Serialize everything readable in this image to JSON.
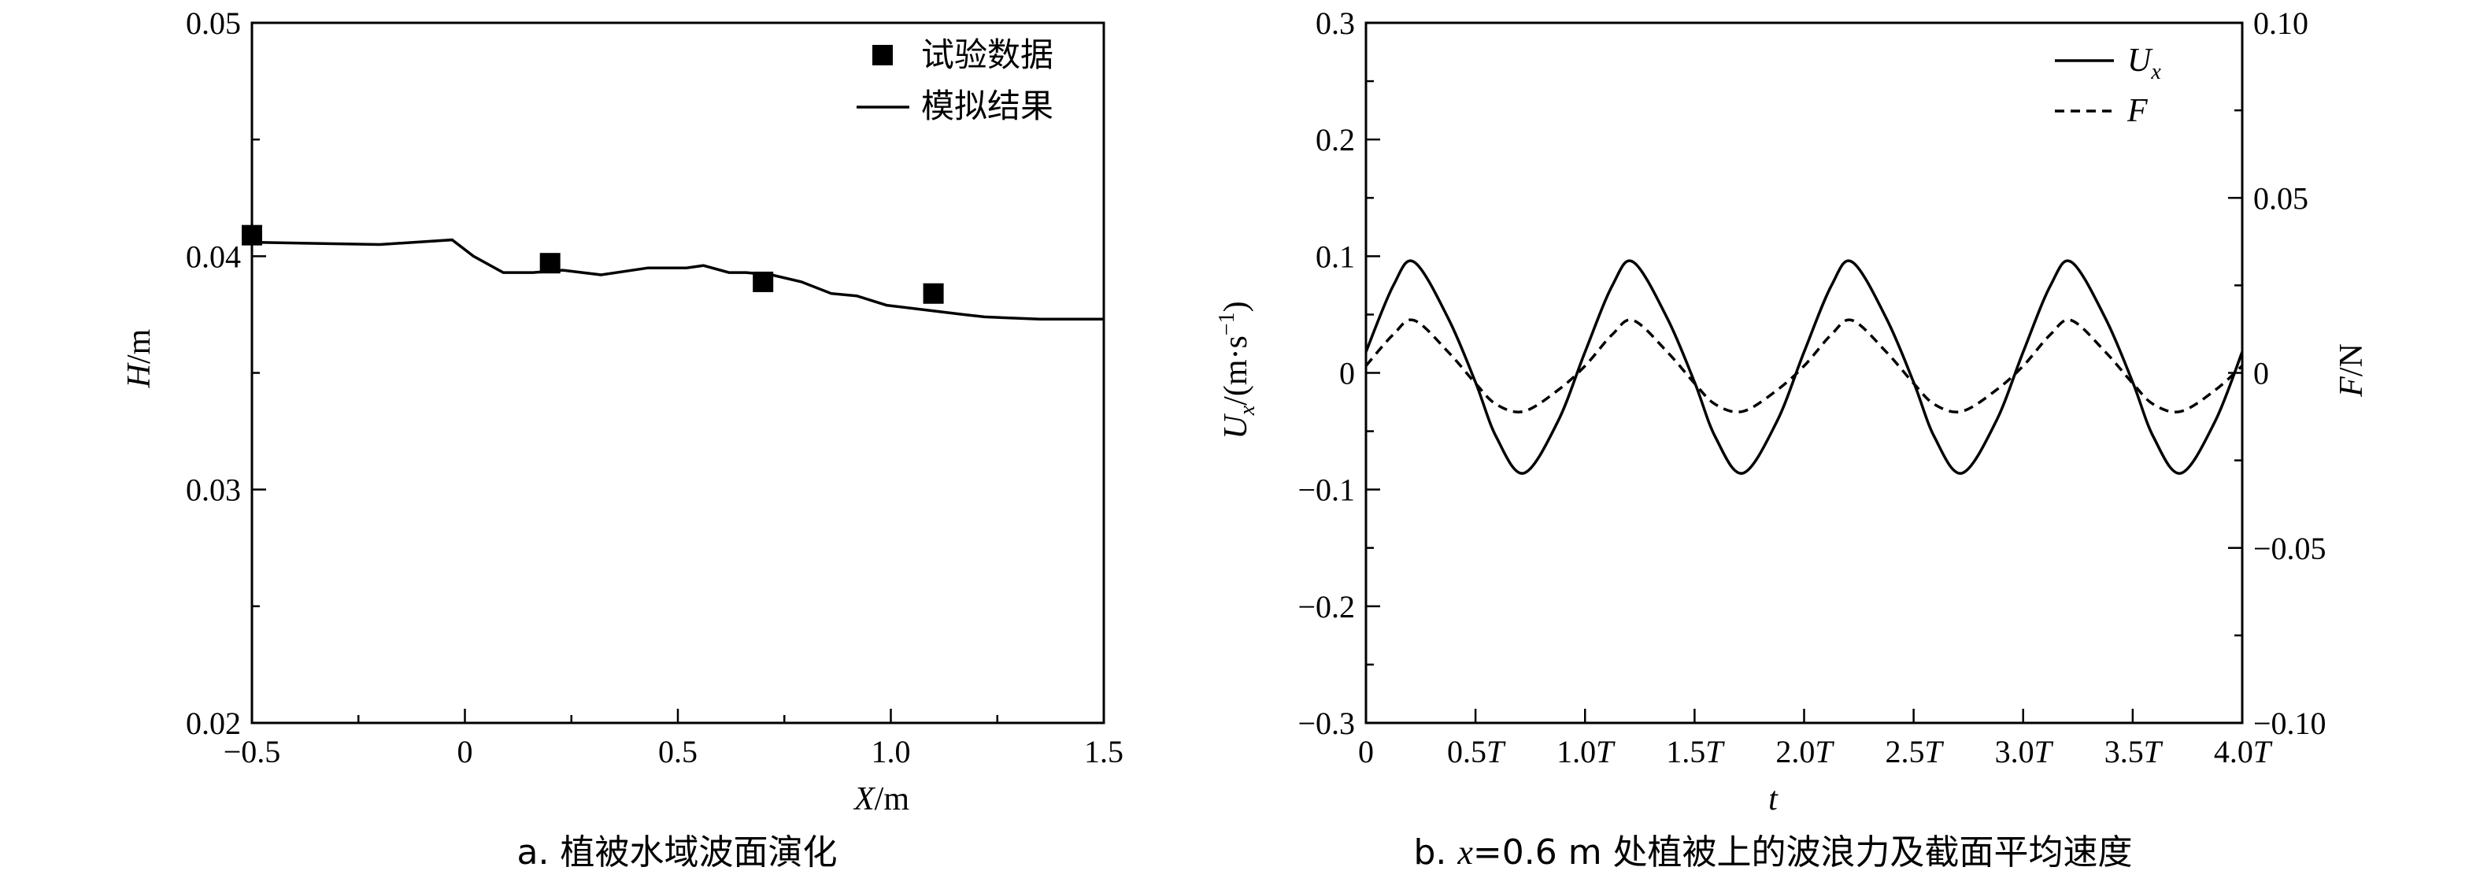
{
  "chart_data": [
    {
      "type": "scatter",
      "caption": "a. 植被水域波面演化",
      "xlabel": "X/m",
      "ylabel": "H/m",
      "xlim": [
        -0.5,
        1.5
      ],
      "ylim": [
        0.02,
        0.05
      ],
      "xticks": [
        -0.5,
        0,
        0.5,
        1.0,
        1.5
      ],
      "xtick_labels": [
        "−0.5",
        "0",
        "0.5",
        "1.0",
        "1.5"
      ],
      "yticks": [
        0.02,
        0.03,
        0.04,
        0.05
      ],
      "ytick_labels": [
        "0.02",
        "0.03",
        "0.04",
        "0.05"
      ],
      "legend_position": "top-right",
      "series": [
        {
          "name": "试验数据",
          "marker": "square",
          "x": [
            -0.5,
            0.2,
            0.7,
            1.1
          ],
          "y": [
            0.0409,
            0.0397,
            0.0389,
            0.0384
          ]
        },
        {
          "name": "模拟结果",
          "style": "solid-line",
          "x": [
            -0.5,
            -0.2,
            -0.03,
            0.02,
            0.09,
            0.16,
            0.23,
            0.32,
            0.43,
            0.52,
            0.56,
            0.62,
            0.66,
            0.72,
            0.79,
            0.86,
            0.92,
            0.99,
            1.08,
            1.17,
            1.22,
            1.35,
            1.5
          ],
          "y": [
            0.0406,
            0.0405,
            0.0407,
            0.04,
            0.0393,
            0.0393,
            0.0394,
            0.0392,
            0.0395,
            0.0395,
            0.0396,
            0.0393,
            0.0393,
            0.0392,
            0.0389,
            0.0384,
            0.0383,
            0.0379,
            0.0377,
            0.0375,
            0.0374,
            0.0373,
            0.0373
          ]
        }
      ]
    },
    {
      "type": "line",
      "caption": "b. x=0.6 m 处植被上的波浪力及截面平均速度",
      "xlabel": "t",
      "ylabel_left": "Ux/(m·s−1)",
      "ylabel_right": "F/N",
      "xlim_T": [
        0,
        4.0
      ],
      "ylim_left": [
        -0.3,
        0.3
      ],
      "ylim_right": [
        -0.1,
        0.1
      ],
      "xticks_T": [
        0,
        0.5,
        1.0,
        1.5,
        2.0,
        2.5,
        3.0,
        3.5,
        4.0
      ],
      "xtick_labels": [
        "0",
        "0.5T",
        "1.0T",
        "1.5T",
        "2.0T",
        "2.5T",
        "3.0T",
        "3.5T",
        "4.0T"
      ],
      "yticks_left": [
        -0.3,
        -0.2,
        -0.1,
        0,
        0.1,
        0.2,
        0.3
      ],
      "ytick_labels_left": [
        "−0.3",
        "−0.2",
        "−0.1",
        "0",
        "0.1",
        "0.2",
        "0.3"
      ],
      "yticks_right": [
        -0.1,
        -0.05,
        0,
        0.05,
        0.1
      ],
      "ytick_labels_right": [
        "−0.10",
        "−0.05",
        "0",
        "0.05",
        "0.10"
      ],
      "legend_position": "top-right",
      "series": [
        {
          "name": "Ux",
          "axis": "left",
          "style": "solid",
          "t_T": [
            0,
            0.125,
            0.22,
            0.375,
            0.5,
            0.595,
            0.72,
            0.875,
            1.0,
            1.125,
            1.22,
            1.375,
            1.5,
            1.595,
            1.72,
            1.875,
            2.0,
            2.125,
            2.22,
            2.375,
            2.5,
            2.595,
            2.72,
            2.875,
            3.0,
            3.125,
            3.22,
            3.375,
            3.5,
            3.595,
            3.72,
            3.875,
            4.0
          ],
          "values": [
            0.018,
            0.075,
            0.095,
            0.047,
            -0.008,
            -0.055,
            -0.086,
            -0.042,
            0.018,
            0.075,
            0.095,
            0.047,
            -0.008,
            -0.055,
            -0.086,
            -0.042,
            0.018,
            0.075,
            0.095,
            0.047,
            -0.008,
            -0.055,
            -0.086,
            -0.042,
            0.018,
            0.075,
            0.095,
            0.047,
            -0.008,
            -0.055,
            -0.086,
            -0.042,
            0.018
          ]
        },
        {
          "name": "F",
          "axis": "right",
          "style": "dashed",
          "t_T": [
            0,
            0.125,
            0.22,
            0.375,
            0.5,
            0.595,
            0.72,
            0.875,
            1.0,
            1.125,
            1.22,
            1.375,
            1.5,
            1.595,
            1.72,
            1.875,
            2.0,
            2.125,
            2.22,
            2.375,
            2.5,
            2.595,
            2.72,
            2.875,
            3.0,
            3.125,
            3.22,
            3.375,
            3.5,
            3.595,
            3.72,
            3.875,
            4.0
          ],
          "values": [
            0.002,
            0.011,
            0.015,
            0.006,
            -0.003,
            -0.009,
            -0.011,
            -0.005,
            0.002,
            0.011,
            0.015,
            0.006,
            -0.003,
            -0.009,
            -0.011,
            -0.005,
            0.002,
            0.011,
            0.015,
            0.006,
            -0.003,
            -0.009,
            -0.011,
            -0.005,
            0.002,
            0.011,
            0.015,
            0.006,
            -0.003,
            -0.009,
            -0.011,
            -0.005,
            0.002
          ]
        }
      ]
    }
  ]
}
